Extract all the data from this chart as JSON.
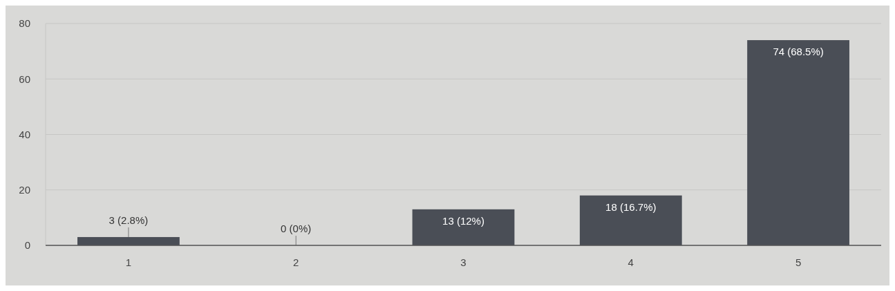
{
  "chart_data": {
    "type": "bar",
    "categories": [
      "1",
      "2",
      "3",
      "4",
      "5"
    ],
    "values": [
      3,
      0,
      13,
      18,
      74
    ],
    "value_labels": [
      "3 (2.8%)",
      "0 (0%)",
      "13 (12%)",
      "18 (16.7%)",
      "74 (68.5%)"
    ],
    "color": "#4a4e56",
    "ylim": [
      0,
      80
    ],
    "yticks": [
      0,
      20,
      40,
      60,
      80
    ],
    "grid": "y"
  }
}
